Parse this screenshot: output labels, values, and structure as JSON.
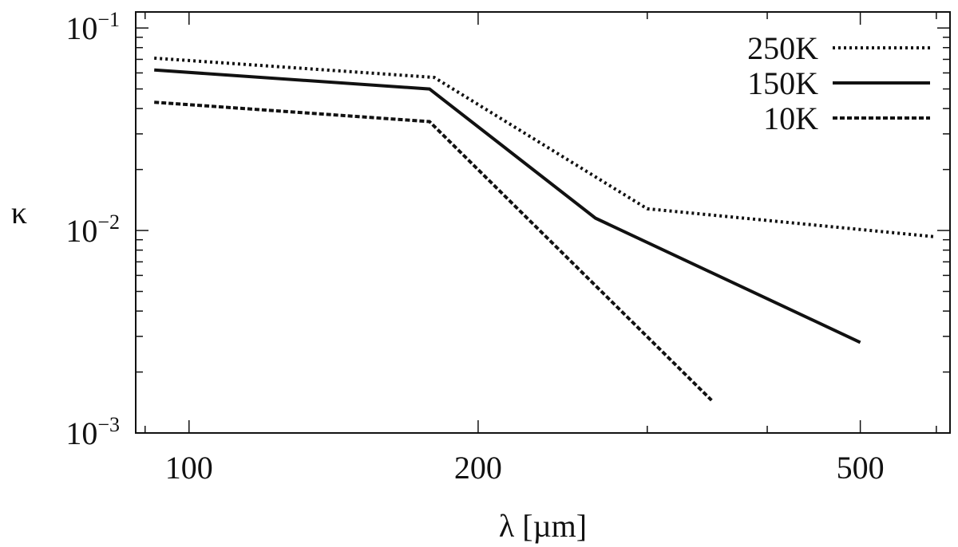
{
  "chart_data": {
    "type": "line",
    "xscale": "log",
    "yscale": "log",
    "xlabel": "λ [µm]",
    "ylabel": "κ",
    "xlim": [
      88,
      620
    ],
    "ylim": [
      0.001,
      0.12
    ],
    "grid": false,
    "legend_position": "top-right",
    "x_ticks": [
      {
        "value": 100,
        "label": "100"
      },
      {
        "value": 200,
        "label": "200"
      },
      {
        "value": 500,
        "label": "500"
      }
    ],
    "y_ticks": [
      {
        "value": 0.1,
        "base": "10",
        "exp": "−1"
      },
      {
        "value": 0.01,
        "base": "10",
        "exp": "−2"
      },
      {
        "value": 0.001,
        "base": "10",
        "exp": "−3"
      }
    ],
    "series": [
      {
        "name": "250K",
        "style": "dotted",
        "color": "#111111",
        "points": [
          [
            92,
            0.071
          ],
          [
            180,
            0.057
          ],
          [
            300,
            0.0128
          ],
          [
            600,
            0.0093
          ]
        ]
      },
      {
        "name": "150K",
        "style": "solid",
        "color": "#111111",
        "points": [
          [
            92,
            0.062
          ],
          [
            178,
            0.05
          ],
          [
            265,
            0.0115
          ],
          [
            500,
            0.0028
          ]
        ]
      },
      {
        "name": "10K",
        "style": "dashed",
        "color": "#111111",
        "points": [
          [
            92,
            0.043
          ],
          [
            178,
            0.0345
          ],
          [
            350,
            0.00145
          ]
        ]
      }
    ]
  }
}
